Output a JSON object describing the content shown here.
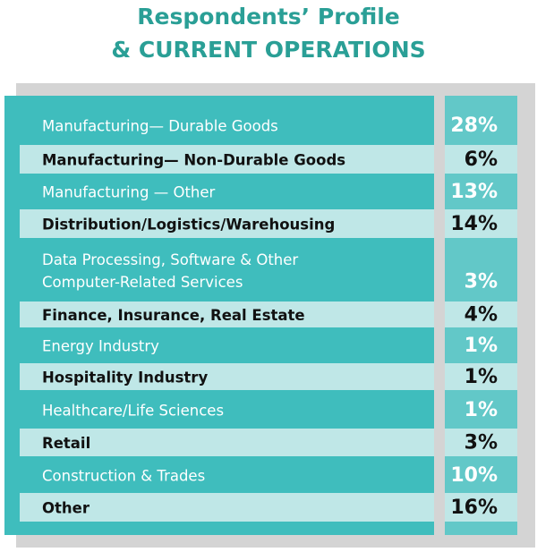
{
  "header": {
    "title": [
      "Respondents’ Profile",
      "& CURRENT OPERATIONS"
    ]
  },
  "table": {
    "rows": [
      {
        "label": [
          "Manufacturing— Durable Goods"
        ],
        "value": "28%"
      },
      {
        "label": [
          "Manufacturing— Non-Durable Goods"
        ],
        "value": "6%"
      },
      {
        "label": [
          "Manufacturing — Other"
        ],
        "value": "13%"
      },
      {
        "label": [
          "Distribution/Logistics/Warehousing"
        ],
        "value": "14%"
      },
      {
        "label": [
          "Data Processing, Software & Other",
          "Computer-Related Services"
        ],
        "value": "3%"
      },
      {
        "label": [
          "Finance, Insurance, Real Estate"
        ],
        "value": "4%"
      },
      {
        "label": [
          "Energy Industry"
        ],
        "value": "1%"
      },
      {
        "label": [
          "Hospitality Industry"
        ],
        "value": "1%"
      },
      {
        "label": [
          "Healthcare/Life Sciences"
        ],
        "value": "1%"
      },
      {
        "label": [
          "Retail"
        ],
        "value": "3%"
      },
      {
        "label": [
          "Construction & Trades"
        ],
        "value": "10%"
      },
      {
        "label": [
          "Other"
        ],
        "value": "16%"
      }
    ]
  }
}
